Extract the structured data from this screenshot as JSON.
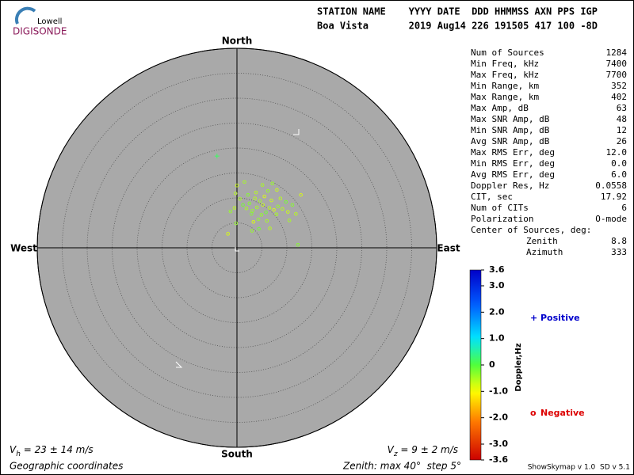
{
  "chart_data": {
    "type": "skymap",
    "logo": {
      "top": "Lowell",
      "bottom": "DIGISONDE"
    },
    "header": [
      "STATION NAME    YYYY DATE  DDD HHMMSS AXN PPS IGP",
      "Boa Vista       2019 Aug14 226 191505 417 100 -8D"
    ],
    "directions": {
      "north": "North",
      "south": "South",
      "east": "East",
      "west": "West"
    },
    "rlim": [
      0,
      40
    ],
    "rticks": [
      5,
      10,
      15,
      20,
      25,
      30,
      35,
      40
    ],
    "stats": [
      {
        "label": "Num of Sources",
        "value": "1284"
      },
      {
        "label": "Min Freq, kHz",
        "value": "7400"
      },
      {
        "label": "Max Freq, kHz",
        "value": "7700"
      },
      {
        "label": "Min Range, km",
        "value": "352"
      },
      {
        "label": "Max Range, km",
        "value": "402"
      },
      {
        "label": "Max Amp, dB",
        "value": "63"
      },
      {
        "label": "Max SNR Amp, dB",
        "value": "48"
      },
      {
        "label": "Min SNR Amp, dB",
        "value": "12"
      },
      {
        "label": "Avg SNR Amp, dB",
        "value": "26"
      },
      {
        "label": "Max RMS Err, deg",
        "value": "12.0"
      },
      {
        "label": "Min RMS Err, deg",
        "value": "0.0"
      },
      {
        "label": "Avg RMS Err, deg",
        "value": "6.0"
      },
      {
        "label": "Doppler Res, Hz",
        "value": "0.0558"
      },
      {
        "label": "CIT, sec",
        "value": "17.92"
      },
      {
        "label": "Num of CITs",
        "value": "6"
      },
      {
        "label": "Polarization",
        "value": "O-mode"
      }
    ],
    "center": {
      "label": "Center of Sources, deg:",
      "rows": [
        {
          "label": "Zenith",
          "value": "8.8"
        },
        {
          "label": "Azimuth",
          "value": "333"
        }
      ]
    },
    "colorbar": {
      "label": "Doppler,Hz",
      "clim": [
        -3.6,
        3.6
      ],
      "ticks": [
        3.6,
        {
          "value": 3.0,
          "label": "3.0"
        },
        {
          "value": 2.0,
          "label": "2.0"
        },
        {
          "value": 1.0,
          "label": "1.0"
        },
        0,
        {
          "value": -1.0,
          "label": "-1.0"
        },
        {
          "value": -2.0,
          "label": "-2.0"
        },
        {
          "value": -3.0,
          "label": "-3.0"
        },
        -3.6
      ]
    },
    "series": [
      {
        "name": "Positive",
        "marker": "+",
        "color": "#0000cc",
        "x": [
          -4.0
        ],
        "y": [
          18.4
        ],
        "doppler": [
          0.2
        ]
      },
      {
        "name": "Negative",
        "marker": "o",
        "color": "#dd0000",
        "x": [
          4.0,
          5.2,
          3.1,
          6.5,
          2.5,
          7.4,
          4.6,
          5.8,
          3.6,
          8.2,
          1.9,
          6.9,
          4.9,
          9.1,
          2.9,
          5.5,
          7.9,
          1.2,
          3.8,
          6.2,
          0.6,
          10.2,
          4.3,
          8.7,
          2.2,
          3.3,
          6.0,
          9.8,
          -0.5,
          -1.3,
          5.1,
          0.0,
          7.1,
          -0.3,
          11.1,
          12.8,
          10.5,
          4.4,
          6.6,
          -0.2,
          1.5,
          8.0,
          3.0,
          11.8,
          12.2,
          -1.8
        ],
        "y": [
          8.1,
          8.6,
          7.4,
          8.0,
          8.9,
          7.6,
          9.4,
          7.1,
          9.9,
          8.3,
          7.9,
          9.5,
          6.6,
          7.8,
          6.8,
          10.3,
          6.7,
          8.6,
          11.1,
          11.4,
          9.8,
          7.2,
          5.7,
          9.9,
          10.6,
          5.2,
          5.4,
          9.2,
          8.0,
          7.3,
          12.6,
          12.5,
          12.9,
          10.9,
          8.6,
          10.6,
          5.5,
          3.8,
          3.9,
          4.9,
          13.2,
          11.6,
          3.4,
          6.8,
          0.6,
          2.8
        ],
        "doppler": [
          -0.5,
          -0.7,
          -0.4,
          -0.6,
          -0.3,
          -0.8,
          -0.5,
          -0.2,
          -0.6,
          -0.4,
          -0.5,
          -0.7,
          -0.4,
          -0.6,
          -0.3,
          -0.8,
          -0.5,
          -0.2,
          -0.6,
          -0.4,
          -0.5,
          -0.7,
          -0.4,
          -0.6,
          -0.3,
          -0.8,
          -0.5,
          -0.2,
          -0.6,
          -0.4,
          -0.5,
          -0.7,
          -0.4,
          -0.6,
          -0.3,
          -0.8,
          -0.5,
          -0.2,
          -0.6,
          -0.4,
          -0.5,
          -0.7,
          -0.4,
          -0.6,
          -0.3,
          -0.8
        ]
      }
    ],
    "footer": {
      "vh": {
        "symbol": "V",
        "sub": "h",
        "text": " = 23 ± 14 m/s"
      },
      "vz": {
        "symbol": "V",
        "sub": "z",
        "text": " = 9 ± 2 m/s"
      },
      "coords": "Geographic coordinates",
      "zenith": "Zenith: max 40°  step 5°",
      "version": "ShowSkymap v 1.0  SD v 5.1"
    }
  }
}
